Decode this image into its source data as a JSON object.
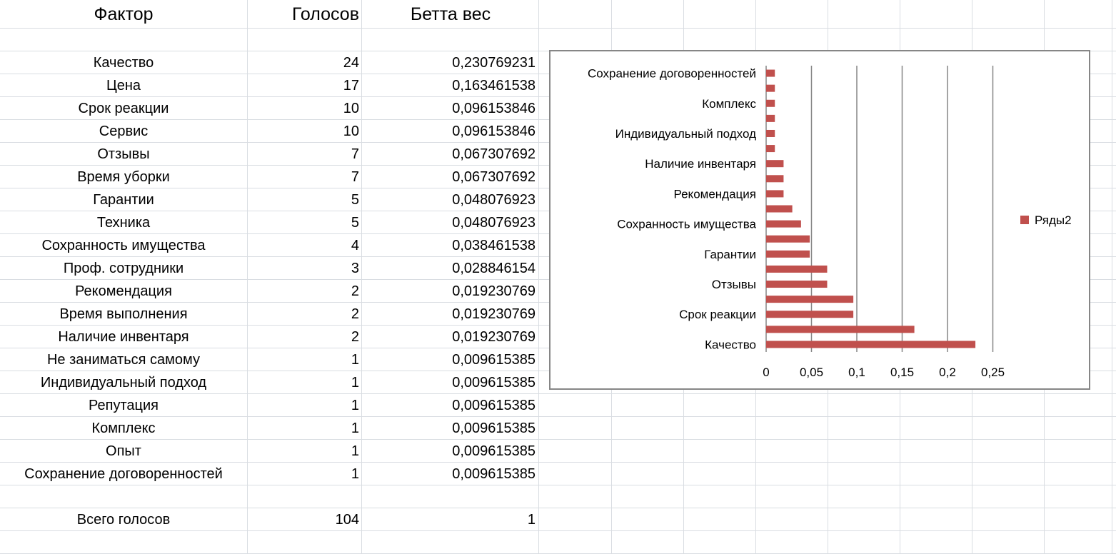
{
  "sheet": {
    "headers": {
      "factor": "Фактор",
      "votes": "Голосов",
      "beta": "Бетта вес"
    },
    "rows": [
      {
        "factor": "Качество",
        "votes": "24",
        "beta": "0,230769231"
      },
      {
        "factor": "Цена",
        "votes": "17",
        "beta": "0,163461538"
      },
      {
        "factor": "Срок реакции",
        "votes": "10",
        "beta": "0,096153846"
      },
      {
        "factor": "Сервис",
        "votes": "10",
        "beta": "0,096153846"
      },
      {
        "factor": "Отзывы",
        "votes": "7",
        "beta": "0,067307692"
      },
      {
        "factor": "Время уборки",
        "votes": "7",
        "beta": "0,067307692"
      },
      {
        "factor": "Гарантии",
        "votes": "5",
        "beta": "0,048076923"
      },
      {
        "factor": "Техника",
        "votes": "5",
        "beta": "0,048076923"
      },
      {
        "factor": "Сохранность имущества",
        "votes": "4",
        "beta": "0,038461538"
      },
      {
        "factor": "Проф. сотрудники",
        "votes": "3",
        "beta": "0,028846154"
      },
      {
        "factor": "Рекомендация",
        "votes": "2",
        "beta": "0,019230769"
      },
      {
        "factor": "Время выполнения",
        "votes": "2",
        "beta": "0,019230769"
      },
      {
        "factor": "Наличие инвентаря",
        "votes": "2",
        "beta": "0,019230769"
      },
      {
        "factor": "Не заниматься самому",
        "votes": "1",
        "beta": "0,009615385"
      },
      {
        "factor": "Индивидуальный подход",
        "votes": "1",
        "beta": "0,009615385"
      },
      {
        "factor": "Репутация",
        "votes": "1",
        "beta": "0,009615385"
      },
      {
        "factor": "Комплекс",
        "votes": "1",
        "beta": "0,009615385"
      },
      {
        "factor": "Опыт",
        "votes": "1",
        "beta": "0,009615385"
      },
      {
        "factor": "Сохранение договоренностей",
        "votes": "1",
        "beta": "0,009615385"
      }
    ],
    "total": {
      "label": "Всего голосов",
      "votes": "104",
      "beta": "1"
    }
  },
  "chart_data": {
    "type": "bar",
    "orientation": "horizontal",
    "categories": [
      "Качество",
      "Цена",
      "Срок реакции",
      "Сервис",
      "Отзывы",
      "Время уборки",
      "Гарантии",
      "Техника",
      "Сохранность имущества",
      "Проф. сотрудники",
      "Рекомендация",
      "Время выполнения",
      "Наличие инвентаря",
      "Не заниматься самому",
      "Индивидуальный подход",
      "Репутация",
      "Комплекс",
      "Опыт",
      "Сохранение договоренностей"
    ],
    "shown_category_labels": [
      "Качество",
      "Срок реакции",
      "Отзывы",
      "Гарантии",
      "Сохранность имущества",
      "Рекомендация",
      "Наличие инвентаря",
      "Индивидуальный подход",
      "Комплекс",
      "Сохранение договоренностей"
    ],
    "series": [
      {
        "name": "Ряды2",
        "values": [
          0.230769231,
          0.163461538,
          0.096153846,
          0.096153846,
          0.067307692,
          0.067307692,
          0.048076923,
          0.048076923,
          0.038461538,
          0.028846154,
          0.019230769,
          0.019230769,
          0.019230769,
          0.009615385,
          0.009615385,
          0.009615385,
          0.009615385,
          0.009615385,
          0.009615385
        ]
      }
    ],
    "xlim": [
      0,
      0.25
    ],
    "xticks": [
      "0",
      "0,05",
      "0,1",
      "0,15",
      "0,2",
      "0,25"
    ],
    "grid": "vertical",
    "legend": "right",
    "colors": {
      "bar": "#c0504d",
      "grid": "#868686",
      "border": "#868686"
    }
  }
}
